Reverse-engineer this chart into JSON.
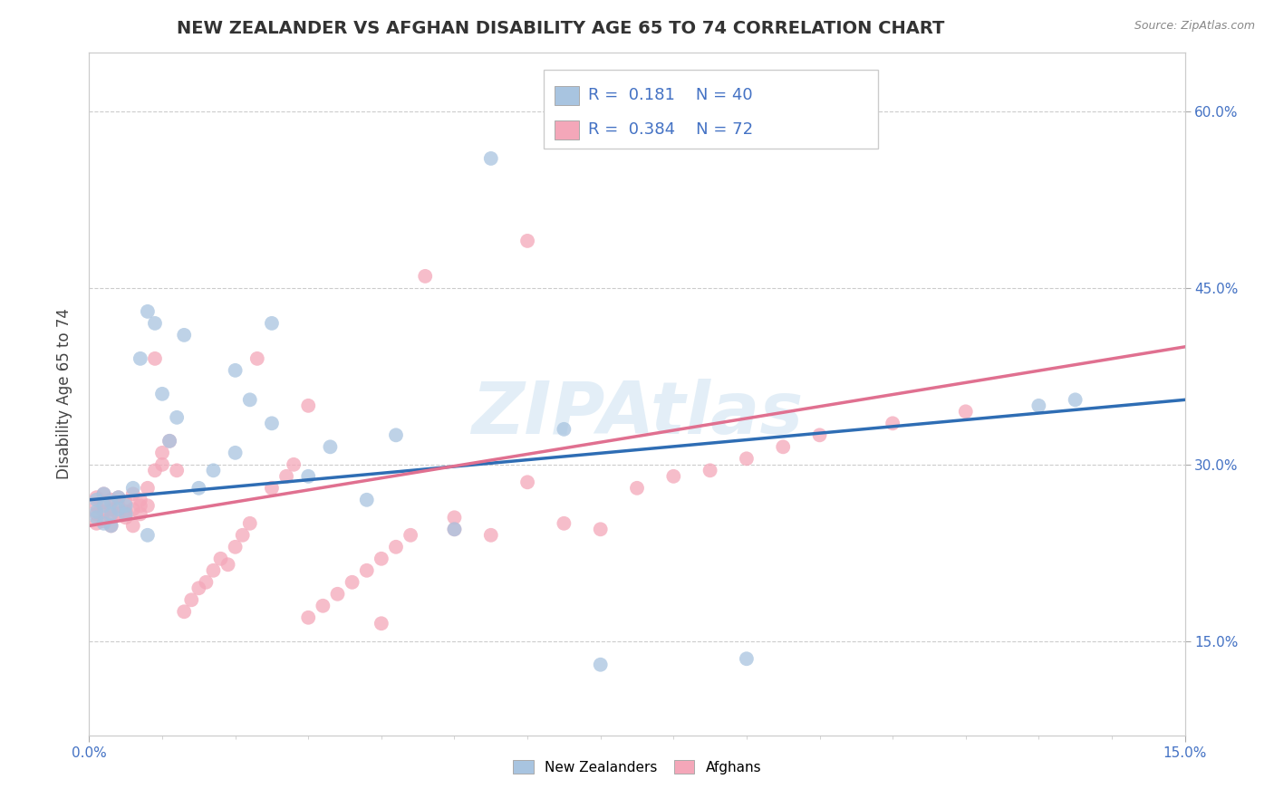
{
  "title": "NEW ZEALANDER VS AFGHAN DISABILITY AGE 65 TO 74 CORRELATION CHART",
  "source_text": "Source: ZipAtlas.com",
  "ylabel": "Disability Age 65 to 74",
  "watermark": "ZIPAtlas",
  "xlim": [
    0.0,
    0.15
  ],
  "ylim": [
    0.07,
    0.65
  ],
  "ytick_positions": [
    0.15,
    0.3,
    0.45,
    0.6
  ],
  "ytick_labels": [
    "15.0%",
    "30.0%",
    "45.0%",
    "60.0%"
  ],
  "nz_color": "#a8c4e0",
  "af_color": "#f4a7b9",
  "nz_line_color": "#2e6db4",
  "af_line_color": "#e07090",
  "nz_R": 0.181,
  "nz_N": 40,
  "af_R": 0.384,
  "af_N": 72,
  "background_color": "#ffffff",
  "grid_color": "#cccccc",
  "title_color": "#333333",
  "axis_label_color": "#4472c4",
  "nz_line_x0": 0.0,
  "nz_line_y0": 0.27,
  "nz_line_x1": 0.15,
  "nz_line_y1": 0.355,
  "af_line_x0": 0.0,
  "af_line_y0": 0.248,
  "af_line_x1": 0.15,
  "af_line_y1": 0.4,
  "nz_x": [
    0.001,
    0.001,
    0.001,
    0.002,
    0.002,
    0.002,
    0.003,
    0.003,
    0.003,
    0.004,
    0.004,
    0.005,
    0.005,
    0.006,
    0.007,
    0.008,
    0.009,
    0.01,
    0.011,
    0.012,
    0.013,
    0.015,
    0.017,
    0.02,
    0.022,
    0.025,
    0.03,
    0.033,
    0.038,
    0.042,
    0.05,
    0.055,
    0.065,
    0.07,
    0.09,
    0.13,
    0.135,
    0.02,
    0.025,
    0.008
  ],
  "nz_y": [
    0.26,
    0.27,
    0.255,
    0.265,
    0.25,
    0.275,
    0.258,
    0.248,
    0.268,
    0.262,
    0.272,
    0.265,
    0.258,
    0.28,
    0.39,
    0.43,
    0.42,
    0.36,
    0.32,
    0.34,
    0.41,
    0.28,
    0.295,
    0.31,
    0.355,
    0.335,
    0.29,
    0.315,
    0.27,
    0.325,
    0.245,
    0.56,
    0.33,
    0.13,
    0.135,
    0.35,
    0.355,
    0.38,
    0.42,
    0.24
  ],
  "af_x": [
    0.001,
    0.001,
    0.001,
    0.001,
    0.002,
    0.002,
    0.002,
    0.002,
    0.003,
    0.003,
    0.003,
    0.003,
    0.004,
    0.004,
    0.004,
    0.005,
    0.005,
    0.005,
    0.006,
    0.006,
    0.006,
    0.007,
    0.007,
    0.007,
    0.008,
    0.008,
    0.009,
    0.009,
    0.01,
    0.01,
    0.011,
    0.012,
    0.013,
    0.014,
    0.015,
    0.016,
    0.017,
    0.018,
    0.019,
    0.02,
    0.021,
    0.022,
    0.023,
    0.025,
    0.027,
    0.028,
    0.03,
    0.032,
    0.034,
    0.036,
    0.038,
    0.04,
    0.042,
    0.044,
    0.046,
    0.05,
    0.055,
    0.06,
    0.065,
    0.07,
    0.075,
    0.08,
    0.085,
    0.09,
    0.095,
    0.1,
    0.11,
    0.12,
    0.04,
    0.05,
    0.03,
    0.06
  ],
  "af_y": [
    0.265,
    0.258,
    0.272,
    0.25,
    0.26,
    0.252,
    0.268,
    0.275,
    0.255,
    0.262,
    0.27,
    0.248,
    0.265,
    0.258,
    0.272,
    0.26,
    0.255,
    0.268,
    0.275,
    0.262,
    0.248,
    0.265,
    0.258,
    0.27,
    0.28,
    0.265,
    0.39,
    0.295,
    0.3,
    0.31,
    0.32,
    0.295,
    0.175,
    0.185,
    0.195,
    0.2,
    0.21,
    0.22,
    0.215,
    0.23,
    0.24,
    0.25,
    0.39,
    0.28,
    0.29,
    0.3,
    0.17,
    0.18,
    0.19,
    0.2,
    0.21,
    0.22,
    0.23,
    0.24,
    0.46,
    0.255,
    0.24,
    0.285,
    0.25,
    0.245,
    0.28,
    0.29,
    0.295,
    0.305,
    0.315,
    0.325,
    0.335,
    0.345,
    0.165,
    0.245,
    0.35,
    0.49
  ]
}
